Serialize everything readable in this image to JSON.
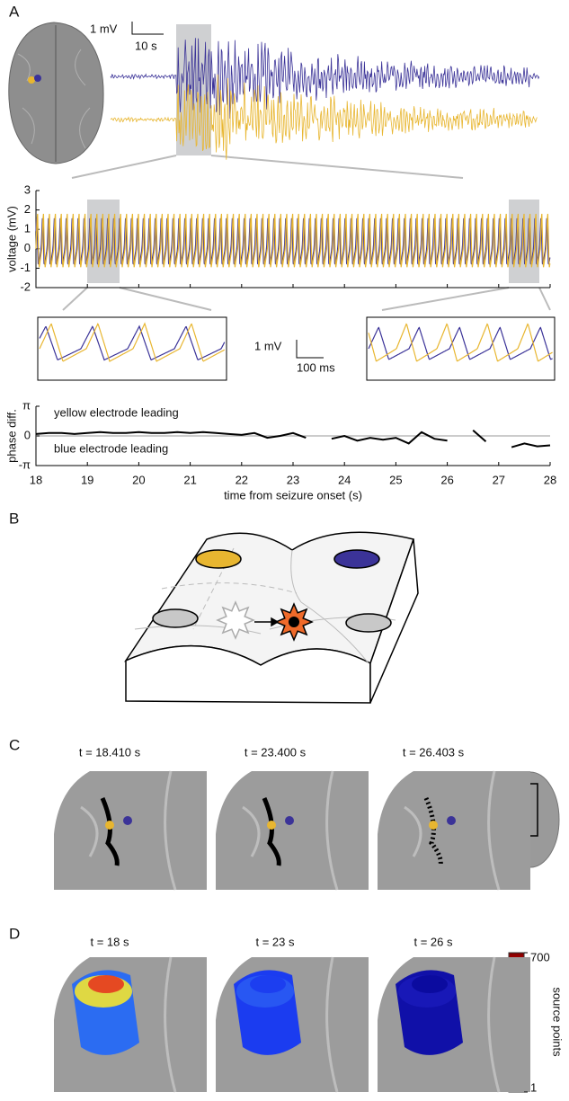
{
  "panel_labels": [
    "A",
    "B",
    "C",
    "D"
  ],
  "scale_bars": {
    "top": [
      "1 mV",
      "10 s"
    ],
    "inset": [
      "1 mV",
      "100 ms"
    ]
  },
  "chart_data": [
    {
      "type": "line",
      "ylabel": "voltage (mV)",
      "ylim": [
        -2,
        3
      ],
      "yticks": [
        -2,
        -1,
        0,
        1,
        2,
        3
      ],
      "xlim": [
        18,
        28
      ],
      "xticks": [
        18,
        19,
        20,
        21,
        22,
        23,
        24,
        25,
        26,
        27,
        28
      ],
      "series": [
        {
          "color": "#3b3398"
        },
        {
          "color": "#e8b630"
        }
      ]
    },
    {
      "type": "line",
      "ylabel": "phase diff.",
      "xlabel": "time from seizure onset (s)",
      "annotations": [
        "yellow electrode leading",
        "blue electrode leading"
      ],
      "annotation_colors": [
        "#e8b630",
        "#3b3398"
      ],
      "xlim": [
        18,
        28
      ],
      "xticks": [
        18,
        19,
        20,
        21,
        22,
        23,
        24,
        25,
        26,
        27,
        28
      ],
      "ylim": [
        -3.1416,
        3.1416
      ],
      "yticks": [
        {
          "value": -3.1416,
          "label": "-π"
        },
        0,
        {
          "value": 3.1416,
          "label": "π"
        }
      ],
      "zero_line": true,
      "x": [
        18,
        18.25,
        18.5,
        18.75,
        19,
        19.25,
        19.5,
        19.75,
        20,
        20.25,
        20.5,
        20.75,
        21,
        21.25,
        21.5,
        21.75,
        22,
        22.25,
        22.5,
        22.75,
        23,
        23.25,
        23.5,
        23.75,
        24,
        24.25,
        24.5,
        24.75,
        25,
        25.25,
        25.5,
        25.75,
        26,
        26.25,
        26.5,
        26.75,
        27,
        27.25,
        27.5,
        27.75,
        28
      ],
      "series": [
        {
          "color": "#000000",
          "values": [
            0.2,
            0.3,
            0.3,
            0.2,
            0.3,
            0.4,
            0.3,
            0.3,
            0.4,
            0.3,
            0.3,
            0.4,
            0.3,
            0.4,
            0.3,
            0.2,
            0.1,
            0.3,
            -0.2,
            0,
            0.3,
            -0.2,
            null,
            -0.3,
            0,
            -0.5,
            -0.2,
            -0.4,
            -0.2,
            -0.8,
            0.4,
            -0.3,
            -0.5,
            null,
            0.6,
            -0.6,
            null,
            -1.2,
            -0.8,
            -1.1,
            -1.0
          ]
        }
      ]
    }
  ],
  "panel_c": {
    "titles": [
      "t = 18.410 s",
      "t = 23.400 s",
      "t = 26.403 s"
    ]
  },
  "panel_d": {
    "titles": [
      "t = 18 s",
      "t = 23 s",
      "t = 26 s"
    ],
    "colorbar": {
      "label": "source points",
      "ticks": [
        1,
        700
      ]
    }
  }
}
